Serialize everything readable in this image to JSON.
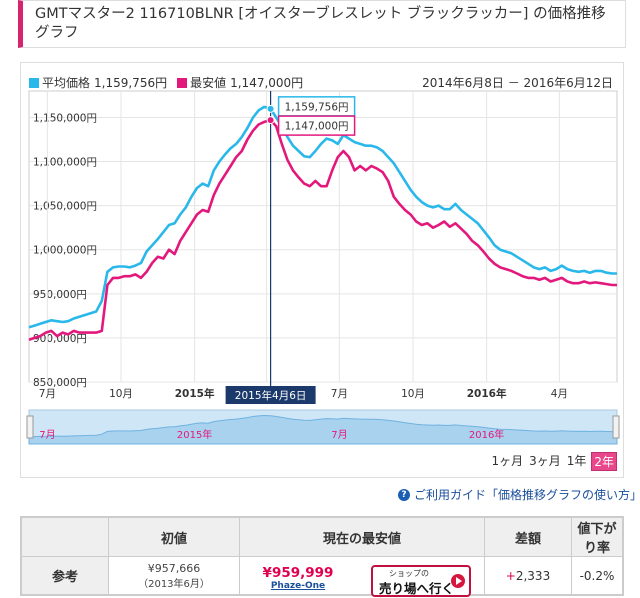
{
  "title": "GMTマスター2 116710BLNR [オイスターブレスレット ブラックラッカー] の価格推移グラフ",
  "legend": {
    "avg_label": "平均価格",
    "avg_value": "1,159,756円",
    "min_label": "最安値",
    "min_value": "1,147,000円"
  },
  "date_range": "2014年6月8日 － 2016年6月12日",
  "tooltip": {
    "avg": "1,159,756円",
    "min": "1,147,000円",
    "date": "2015年4月6日"
  },
  "zoom": {
    "m1": "1ヶ月",
    "m3": "3ヶ月",
    "y1": "1年",
    "y2": "2年"
  },
  "guide_text": "ご利用ガイド「価格推移グラフの使い方」",
  "table": {
    "h_initial": "初値",
    "h_current": "現在の最安値",
    "h_diff": "差額",
    "h_rate": "値下がり率",
    "row_label": "参考",
    "initial_value": "¥957,666",
    "initial_date": "（2013年6月）",
    "current_price": "¥959,999",
    "shop_name": "Phaze-One",
    "btn_small": "ショップの",
    "btn_main": "売り場へ行く",
    "diff_sign": "+",
    "diff_value": "2,333",
    "rate_value": "-0.2%"
  },
  "colors": {
    "avg": "#2ab7ea",
    "min": "#e3187c",
    "accent": "#d6246e"
  },
  "chart_data": {
    "type": "line",
    "title": "",
    "xlabel": "",
    "ylabel": "",
    "ylim": [
      850000,
      1180000
    ],
    "yticks": [
      "850,000円",
      "900,000円",
      "950,000円",
      "1,000,000円",
      "1,050,000円",
      "1,100,000円",
      "1,150,000円"
    ],
    "xticks": [
      "7月",
      "10月",
      "2015年",
      "4月",
      "7月",
      "10月",
      "2016年",
      "4月"
    ],
    "nav_labels": [
      "7月",
      "2015年",
      "7月",
      "2016年"
    ],
    "x": [
      "2014-06-08",
      "2014-06-15",
      "2014-06-22",
      "2014-06-29",
      "2014-07-06",
      "2014-07-13",
      "2014-07-20",
      "2014-07-27",
      "2014-08-03",
      "2014-08-10",
      "2014-08-17",
      "2014-08-24",
      "2014-08-31",
      "2014-09-07",
      "2014-09-14",
      "2014-09-21",
      "2014-09-28",
      "2014-10-05",
      "2014-10-12",
      "2014-10-19",
      "2014-10-26",
      "2014-11-02",
      "2014-11-09",
      "2014-11-16",
      "2014-11-23",
      "2014-11-30",
      "2014-12-07",
      "2014-12-14",
      "2014-12-21",
      "2014-12-28",
      "2015-01-04",
      "2015-01-11",
      "2015-01-18",
      "2015-01-25",
      "2015-02-01",
      "2015-02-08",
      "2015-02-15",
      "2015-02-22",
      "2015-03-01",
      "2015-03-08",
      "2015-03-15",
      "2015-03-22",
      "2015-03-29",
      "2015-04-06",
      "2015-04-13",
      "2015-04-20",
      "2015-04-27",
      "2015-05-04",
      "2015-05-11",
      "2015-05-18",
      "2015-05-25",
      "2015-06-01",
      "2015-06-08",
      "2015-06-15",
      "2015-06-22",
      "2015-06-29",
      "2015-07-06",
      "2015-07-13",
      "2015-07-20",
      "2015-07-27",
      "2015-08-03",
      "2015-08-10",
      "2015-08-17",
      "2015-08-24",
      "2015-08-31",
      "2015-09-07",
      "2015-09-14",
      "2015-09-21",
      "2015-09-28",
      "2015-10-05",
      "2015-10-12",
      "2015-10-19",
      "2015-10-26",
      "2015-11-02",
      "2015-11-09",
      "2015-11-16",
      "2015-11-23",
      "2015-11-30",
      "2015-12-07",
      "2015-12-14",
      "2015-12-21",
      "2015-12-28",
      "2016-01-04",
      "2016-01-11",
      "2016-01-18",
      "2016-01-25",
      "2016-02-01",
      "2016-02-08",
      "2016-02-15",
      "2016-02-22",
      "2016-02-29",
      "2016-03-07",
      "2016-03-14",
      "2016-03-21",
      "2016-03-28",
      "2016-04-04",
      "2016-04-11",
      "2016-04-18",
      "2016-04-25",
      "2016-05-02",
      "2016-05-09",
      "2016-05-16",
      "2016-05-23",
      "2016-05-30",
      "2016-06-06",
      "2016-06-12"
    ],
    "series": [
      {
        "name": "平均価格",
        "values": [
          912000,
          914000,
          916000,
          918000,
          920000,
          919000,
          918000,
          919000,
          922000,
          924000,
          926000,
          928000,
          930000,
          942000,
          975000,
          980000,
          981000,
          981000,
          980000,
          982000,
          985000,
          998000,
          1005000,
          1012000,
          1020000,
          1028000,
          1030000,
          1040000,
          1048000,
          1060000,
          1070000,
          1075000,
          1072000,
          1090000,
          1100000,
          1108000,
          1115000,
          1120000,
          1128000,
          1138000,
          1150000,
          1158000,
          1162000,
          1159756,
          1150000,
          1140000,
          1128000,
          1118000,
          1112000,
          1106000,
          1105000,
          1112000,
          1120000,
          1126000,
          1124000,
          1120000,
          1130000,
          1126000,
          1122000,
          1120000,
          1118000,
          1118000,
          1116000,
          1112000,
          1105000,
          1098000,
          1088000,
          1078000,
          1068000,
          1060000,
          1054000,
          1050000,
          1048000,
          1050000,
          1046000,
          1046000,
          1052000,
          1045000,
          1040000,
          1035000,
          1030000,
          1022000,
          1014000,
          1005000,
          1000000,
          998000,
          996000,
          992000,
          988000,
          984000,
          980000,
          978000,
          980000,
          976000,
          978000,
          982000,
          978000,
          976000,
          975000,
          976000,
          974000,
          976000,
          976000,
          974000,
          973000,
          973000
        ]
      },
      {
        "name": "最安値",
        "values": [
          898000,
          900000,
          902000,
          906000,
          908000,
          902000,
          906000,
          904000,
          908000,
          906000,
          906000,
          906000,
          906000,
          908000,
          960000,
          968000,
          968000,
          970000,
          970000,
          972000,
          968000,
          975000,
          985000,
          992000,
          990000,
          1000000,
          995000,
          1010000,
          1020000,
          1030000,
          1040000,
          1045000,
          1043000,
          1062000,
          1075000,
          1085000,
          1095000,
          1105000,
          1112000,
          1125000,
          1135000,
          1142000,
          1145000,
          1147000,
          1140000,
          1120000,
          1102000,
          1090000,
          1082000,
          1075000,
          1072000,
          1078000,
          1072000,
          1072000,
          1090000,
          1105000,
          1112000,
          1105000,
          1090000,
          1095000,
          1090000,
          1095000,
          1092000,
          1088000,
          1078000,
          1060000,
          1052000,
          1045000,
          1040000,
          1032000,
          1028000,
          1030000,
          1025000,
          1028000,
          1032000,
          1026000,
          1030000,
          1024000,
          1018000,
          1010000,
          1005000,
          998000,
          990000,
          984000,
          980000,
          978000,
          976000,
          973000,
          970000,
          968000,
          968000,
          966000,
          968000,
          964000,
          966000,
          968000,
          964000,
          962000,
          962000,
          964000,
          962000,
          963000,
          962000,
          961000,
          960000,
          960000
        ]
      }
    ]
  }
}
